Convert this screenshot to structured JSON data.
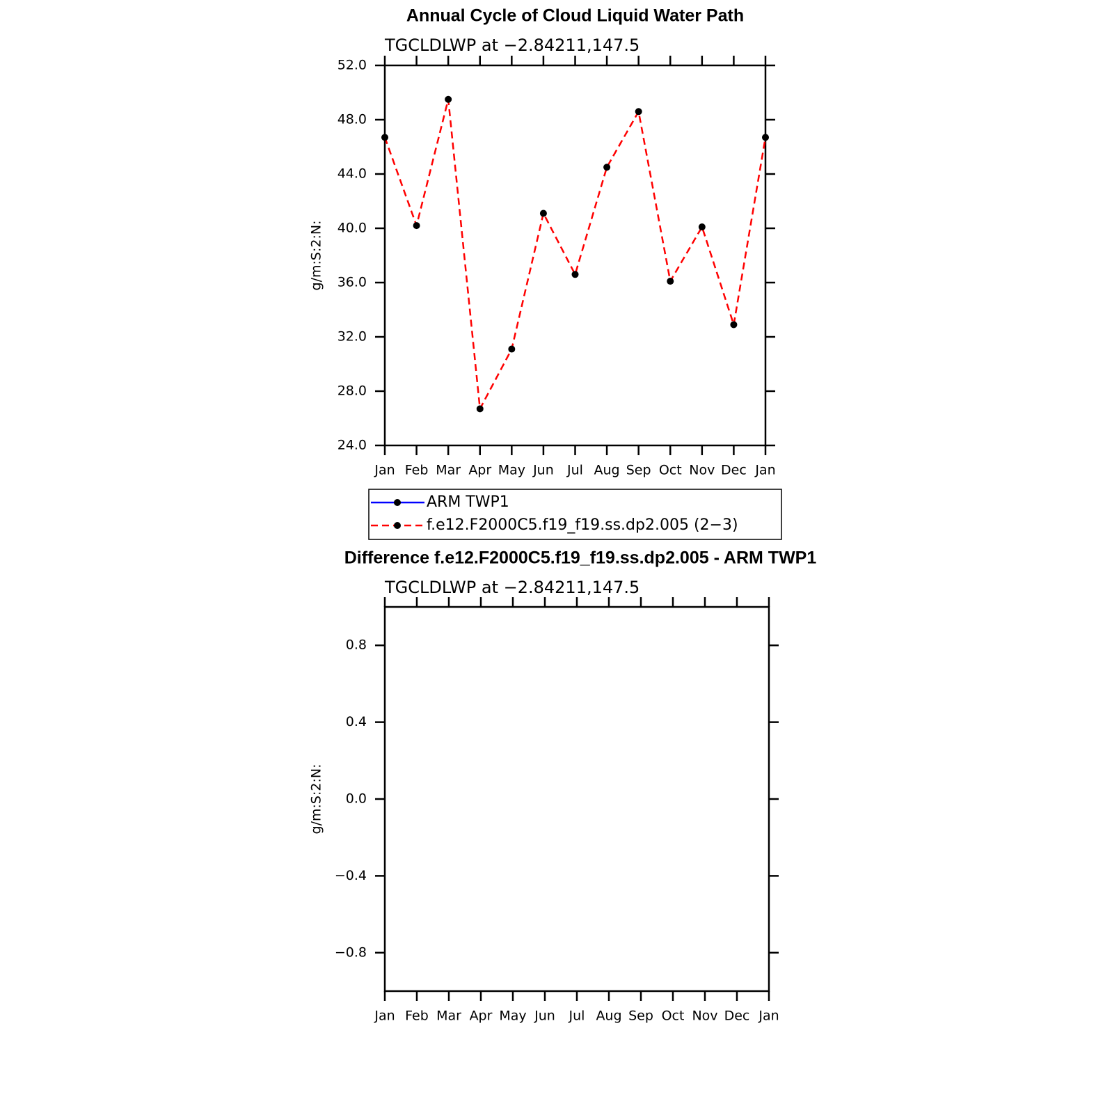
{
  "chart_data": [
    {
      "type": "line",
      "title": "Annual Cycle of Cloud Liquid Water Path",
      "subtitle": "TGCLDLWP  at  −2.84211,147.5",
      "y_label": "g/m:S:2:N:",
      "categories": [
        "Jan",
        "Feb",
        "Mar",
        "Apr",
        "May",
        "Jun",
        "Jul",
        "Aug",
        "Sep",
        "Oct",
        "Nov",
        "Dec",
        "Jan"
      ],
      "ylim": [
        24,
        52
      ],
      "yticks": [
        {
          "value": 24,
          "label": "24.0"
        },
        {
          "value": 28,
          "label": "28.0"
        },
        {
          "value": 32,
          "label": "32.0"
        },
        {
          "value": 36,
          "label": "36.0"
        },
        {
          "value": 40,
          "label": "40.0"
        },
        {
          "value": 44,
          "label": "44.0"
        },
        {
          "value": 48,
          "label": "48.0"
        },
        {
          "value": 52,
          "label": "52.0"
        }
      ],
      "series": [
        {
          "name": "ARM TWP1",
          "color": "#0000ff",
          "dash": false,
          "values": [
            null,
            null,
            null,
            null,
            null,
            null,
            null,
            null,
            null,
            null,
            null,
            null,
            null
          ]
        },
        {
          "name": "f.e12.F2000C5.f19_f19.ss.dp2.005 (2−3)",
          "color": "#ff0000",
          "dash": true,
          "values": [
            46.7,
            40.2,
            49.5,
            26.7,
            31.1,
            41.1,
            36.6,
            44.5,
            48.6,
            36.1,
            40.1,
            32.9,
            46.7
          ]
        }
      ]
    },
    {
      "type": "line",
      "title": "Difference f.e12.F2000C5.f19_f19.ss.dp2.005 - ARM TWP1",
      "subtitle": "TGCLDLWP  at  −2.84211,147.5",
      "y_label": "g/m:S:2:N:",
      "categories": [
        "Jan",
        "Feb",
        "Mar",
        "Apr",
        "May",
        "Jun",
        "Jul",
        "Aug",
        "Sep",
        "Oct",
        "Nov",
        "Dec",
        "Jan"
      ],
      "ylim": [
        -1,
        1
      ],
      "yticks": [
        {
          "value": -0.8,
          "label": "−0.8"
        },
        {
          "value": -0.4,
          "label": "−0.4"
        },
        {
          "value": 0,
          "label": "0.0"
        },
        0.4,
        0.8
      ],
      "series": []
    }
  ]
}
